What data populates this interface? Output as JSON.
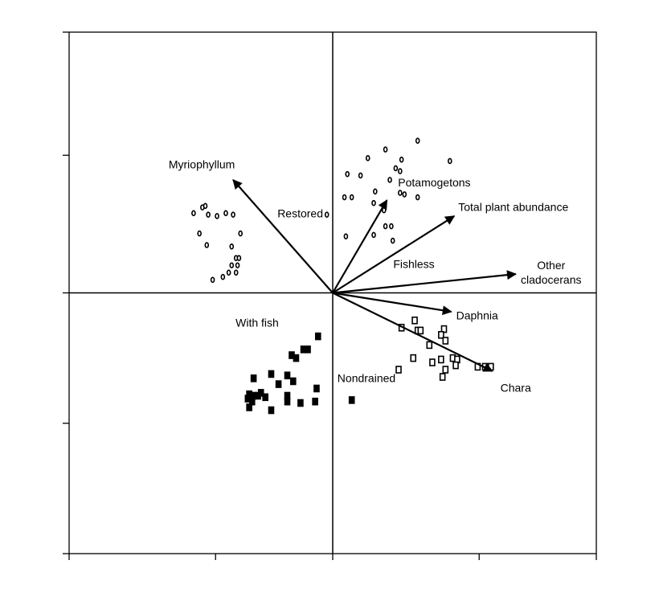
{
  "chart_data": {
    "type": "scatter",
    "xlim": [
      -1.8,
      1.8
    ],
    "ylim": [
      -1.8,
      1.8
    ],
    "xticks": [
      -1.8,
      -0.8,
      0,
      1,
      1.8
    ],
    "yticks": [
      -1.8,
      -0.9,
      0,
      0.95,
      1.8
    ],
    "series": [
      {
        "marker": "circle",
        "filled": false,
        "color": "#000000",
        "x": [
          -0.95,
          -0.89,
          -0.87,
          -0.85,
          -0.79,
          -0.73,
          -0.68,
          -0.91,
          -0.63,
          -0.86,
          -0.69,
          -0.66,
          -0.64,
          -0.69,
          -0.65,
          -0.71,
          -0.66,
          -0.75,
          -0.82
        ],
        "y": [
          0.55,
          0.59,
          0.6,
          0.54,
          0.53,
          0.55,
          0.54,
          0.41,
          0.41,
          0.33,
          0.32,
          0.24,
          0.24,
          0.19,
          0.19,
          0.14,
          0.14,
          0.11,
          0.09
        ]
      },
      {
        "marker": "circle",
        "filled": false,
        "color": "#000000",
        "x": [
          0.58,
          0.36,
          0.24,
          0.8,
          0.47,
          0.1,
          0.19,
          0.43,
          0.46,
          0.39,
          0.29,
          0.08,
          0.13,
          0.49,
          0.46,
          0.58,
          0.28,
          0.35,
          0.36,
          0.4,
          0.28,
          0.09,
          0.41,
          -0.04
        ],
        "y": [
          1.05,
          0.99,
          0.93,
          0.91,
          0.92,
          0.82,
          0.81,
          0.86,
          0.84,
          0.78,
          0.7,
          0.66,
          0.66,
          0.68,
          0.69,
          0.66,
          0.62,
          0.57,
          0.46,
          0.46,
          0.4,
          0.39,
          0.36,
          0.54
        ]
      },
      {
        "marker": "square",
        "filled": true,
        "color": "#000000",
        "x": [
          -0.1,
          -0.2,
          -0.17,
          -0.28,
          -0.25,
          -0.31,
          -0.42,
          -0.27,
          -0.54,
          -0.37,
          -0.49,
          -0.57,
          -0.51,
          -0.54,
          -0.58,
          -0.55,
          -0.57,
          -0.46,
          -0.31,
          -0.31,
          -0.11,
          -0.12,
          -0.22,
          -0.42,
          0.13
        ],
        "y": [
          -0.3,
          -0.39,
          -0.39,
          -0.43,
          -0.45,
          -0.57,
          -0.56,
          -0.61,
          -0.59,
          -0.63,
          -0.69,
          -0.7,
          -0.71,
          -0.71,
          -0.73,
          -0.75,
          -0.79,
          -0.72,
          -0.71,
          -0.75,
          -0.66,
          -0.75,
          -0.76,
          -0.81,
          -0.74
        ]
      },
      {
        "marker": "square",
        "filled": false,
        "color": "#000000",
        "x": [
          0.56,
          0.47,
          0.58,
          0.6,
          0.76,
          0.74,
          0.66,
          0.77,
          0.55,
          0.45,
          0.68,
          0.74,
          0.82,
          0.85,
          0.77,
          0.75,
          0.84,
          0.99,
          1.08,
          1.04
        ],
        "y": [
          -0.19,
          -0.24,
          -0.26,
          -0.26,
          -0.25,
          -0.29,
          -0.36,
          -0.33,
          -0.45,
          -0.53,
          -0.48,
          -0.46,
          -0.45,
          -0.46,
          -0.53,
          -0.58,
          -0.5,
          -0.51,
          -0.51,
          -0.51
        ]
      }
    ],
    "vectors": [
      {
        "label": "Myriophyllum",
        "x": -0.68,
        "y": 0.78
      },
      {
        "label": "Potamogetons",
        "x": 0.37,
        "y": 0.64
      },
      {
        "label": "Total plant abundance",
        "x": 0.83,
        "y": 0.53
      },
      {
        "label": "Other cladocerans",
        "x": 1.25,
        "y": 0.13
      },
      {
        "label": "Daphnia",
        "x": 0.81,
        "y": -0.13
      },
      {
        "label": "Chara",
        "x": 1.09,
        "y": -0.54
      }
    ],
    "annotations": [
      "Restored",
      "Fishless",
      "With fish",
      "Nondrained"
    ]
  }
}
